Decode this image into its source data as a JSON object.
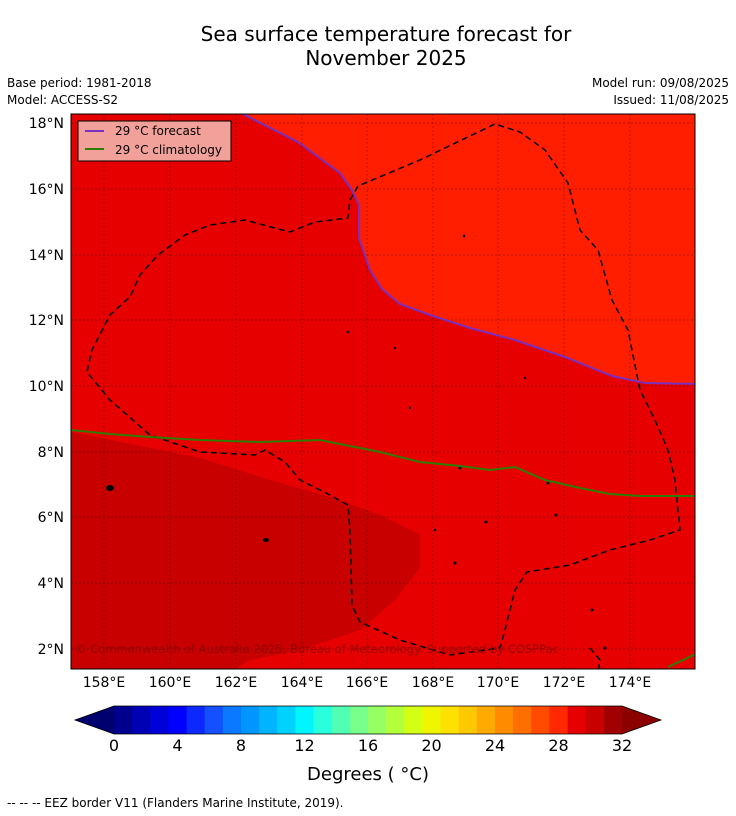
{
  "title_line1": "Sea surface temperature forecast for",
  "title_line2": "November 2025",
  "meta": {
    "base_period": "Base period: 1981-2018",
    "model": "Model: ACCESS-S2",
    "model_run": "Model run: 09/08/2025",
    "issued": "Issued: 11/08/2025"
  },
  "legend": {
    "forecast_label": "29 °C  forecast",
    "climatology_label": "29 °C  climatology",
    "forecast_color": "#7b2fbe",
    "climatology_color": "#2e7d00"
  },
  "lat_ticks": [
    "18°N",
    "16°N",
    "14°N",
    "12°N",
    "10°N",
    "8°N",
    "6°N",
    "4°N",
    "2°N"
  ],
  "lon_ticks": [
    "158°E",
    "160°E",
    "162°E",
    "164°E",
    "166°E",
    "168°E",
    "170°E",
    "172°E",
    "174°E"
  ],
  "copyright": "© Commonwealth of Australia 2025, Bureau of Meteorology. Supported by COSPPac",
  "colorbar": {
    "tick_labels": [
      "0",
      "4",
      "8",
      "12",
      "16",
      "20",
      "24",
      "28",
      "32"
    ],
    "label": "Degrees ( °C)",
    "colors": [
      "#00008c",
      "#0000b4",
      "#0000d8",
      "#0000ff",
      "#0c28ff",
      "#1450ff",
      "#0a78ff",
      "#0096ff",
      "#00b4ff",
      "#00d2ff",
      "#00f5ff",
      "#28ffdc",
      "#50ffb4",
      "#78ff8c",
      "#96ff64",
      "#b4ff3c",
      "#d2ff14",
      "#f0f500",
      "#ffe100",
      "#ffc800",
      "#ffaa00",
      "#ff8c00",
      "#ff6e00",
      "#ff4b00",
      "#ff2800",
      "#e60000",
      "#c80000",
      "#a00000"
    ],
    "under_color": "#00006e",
    "over_color": "#8c0000"
  },
  "map_colors": {
    "warm_region": "#ff1e00",
    "mid_region": "#e60000",
    "cool_region": "#c80000",
    "eez_border": "#000000"
  },
  "footnote": "--  --  -- EEZ border V11 (Flanders Marine Institute, 2019)."
}
